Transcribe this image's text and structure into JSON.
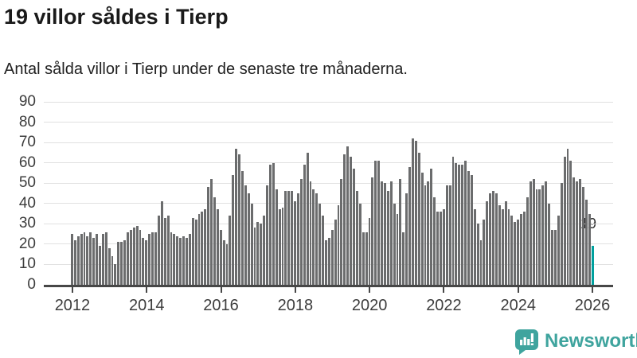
{
  "header": {
    "title": "19 villor såldes i Tierp",
    "subtitle": "Antal sålda villor i Tierp under de senaste tre månaderna."
  },
  "chart_data": {
    "type": "bar",
    "title": "19 villor såldes i Tierp",
    "xlabel": "",
    "ylabel": "",
    "x_start": "2012-01",
    "x_end": "2026-01",
    "frequency": "monthly",
    "ylim": [
      0,
      90
    ],
    "yticks": [
      0,
      10,
      20,
      30,
      40,
      50,
      60,
      70,
      80,
      90
    ],
    "xticks": [
      {
        "label": "2012",
        "month_index": 0
      },
      {
        "label": "2014",
        "month_index": 24
      },
      {
        "label": "2016",
        "month_index": 48
      },
      {
        "label": "2018",
        "month_index": 72
      },
      {
        "label": "2020",
        "month_index": 96
      },
      {
        "label": "2022",
        "month_index": 120
      },
      {
        "label": "2024",
        "month_index": 144
      },
      {
        "label": "2026",
        "month_index": 168
      }
    ],
    "values": [
      25,
      22,
      24,
      25,
      26,
      24,
      26,
      23,
      25,
      19,
      25,
      26,
      18,
      14,
      10,
      21,
      21,
      22,
      26,
      27,
      28,
      29,
      27,
      23,
      22,
      25,
      26,
      26,
      34,
      41,
      33,
      34,
      26,
      25,
      24,
      23,
      24,
      23,
      25,
      33,
      32,
      35,
      36,
      37,
      48,
      52,
      43,
      37,
      27,
      22,
      20,
      34,
      54,
      67,
      64,
      56,
      49,
      45,
      40,
      28,
      31,
      30,
      34,
      49,
      59,
      60,
      47,
      37,
      38,
      46,
      46,
      46,
      41,
      45,
      52,
      59,
      65,
      51,
      47,
      45,
      40,
      34,
      22,
      23,
      27,
      32,
      39,
      52,
      64,
      68,
      63,
      57,
      46,
      40,
      26,
      26,
      33,
      53,
      61,
      61,
      51,
      50,
      46,
      51,
      40,
      35,
      52,
      26,
      45,
      58,
      72,
      71,
      65,
      55,
      49,
      51,
      57,
      43,
      36,
      36,
      37,
      49,
      49,
      63,
      60,
      59,
      59,
      61,
      56,
      54,
      37,
      30,
      22,
      32,
      41,
      45,
      46,
      45,
      39,
      37,
      41,
      37,
      34,
      31,
      32,
      35,
      36,
      43,
      51,
      52,
      47,
      47,
      49,
      51,
      40,
      27,
      27,
      34,
      50,
      63,
      67,
      61,
      53,
      51,
      52,
      48,
      42,
      35,
      19
    ],
    "bar_color": "#6b6c6d",
    "highlight_color": "#00a09e",
    "highlight_index": 168,
    "annotation": {
      "text": "19",
      "value": 19
    },
    "grid": true,
    "legend": "none"
  },
  "footer": {
    "brand": "Newsworthy",
    "brand_color": "#3fa49e"
  }
}
